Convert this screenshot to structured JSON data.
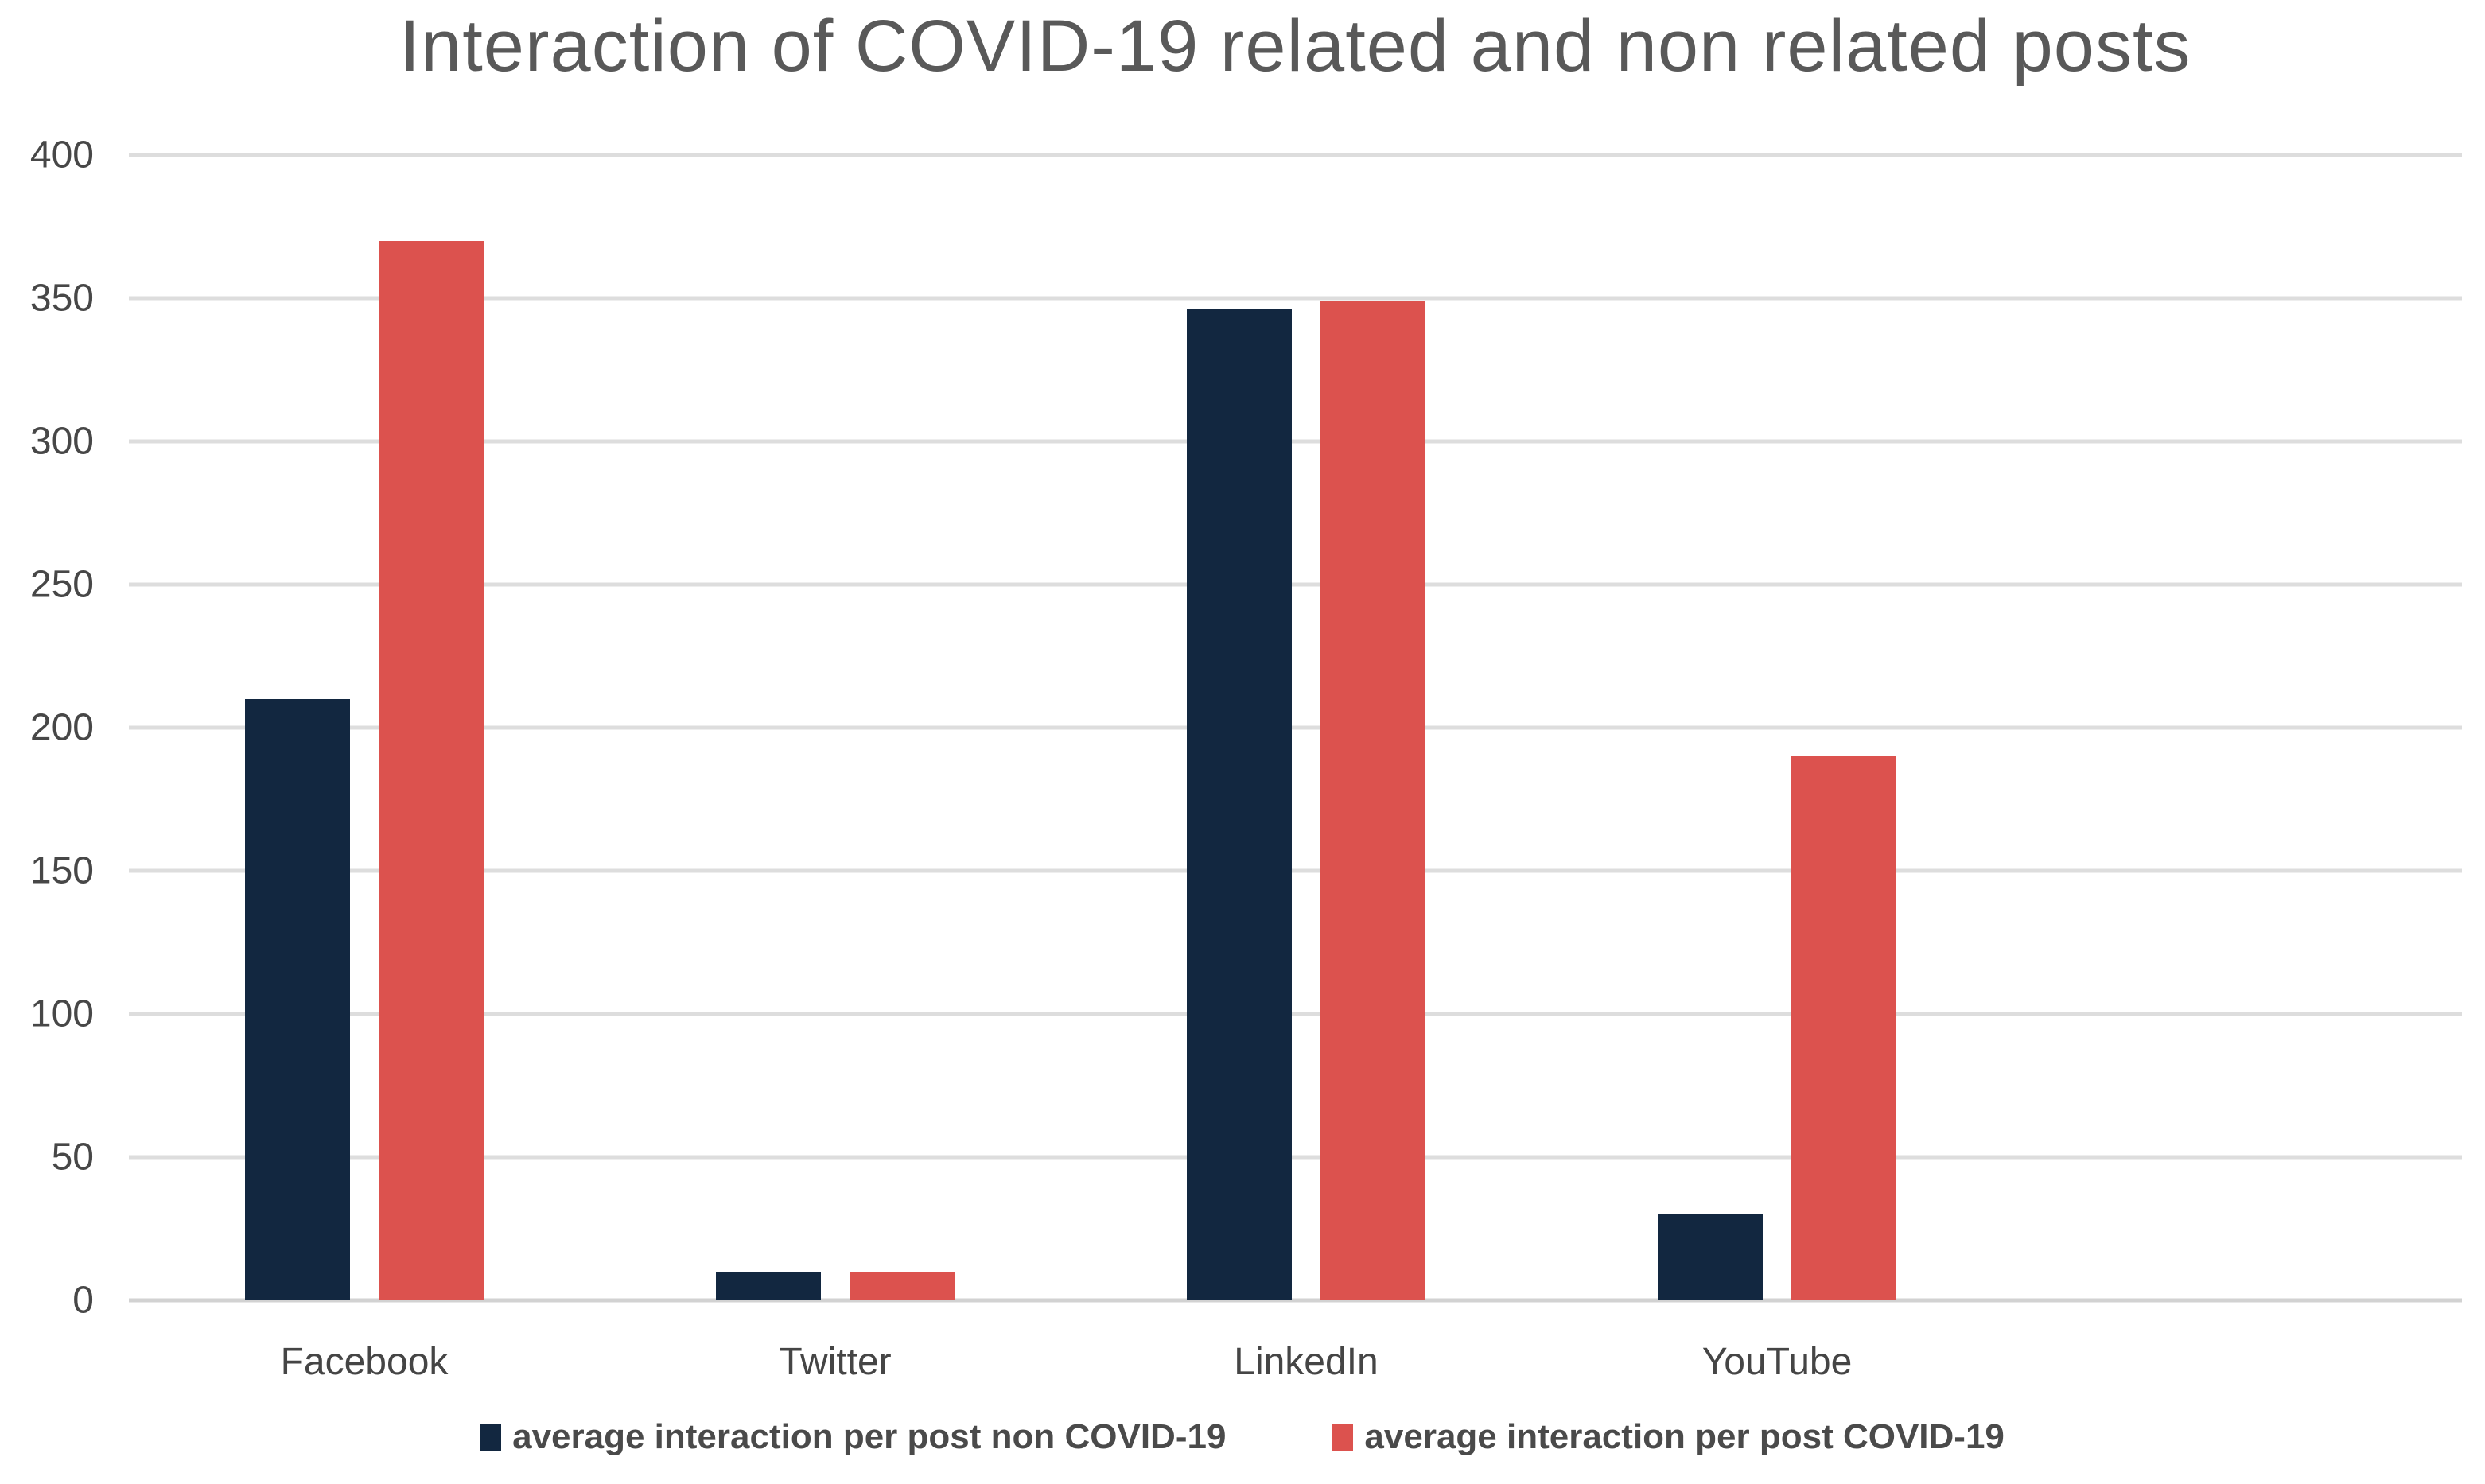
{
  "title": "Interaction of COVID-19 related and non related posts",
  "chart_data": {
    "type": "bar",
    "title": "Interaction of COVID-19 related and non related posts",
    "categories": [
      "Facebook",
      "Twitter",
      "LinkedIn",
      "YouTube"
    ],
    "series": [
      {
        "name": "average interaction per post non COVID-19",
        "color": "#122740",
        "values": [
          210,
          10,
          346,
          30
        ]
      },
      {
        "name": "average interaction per post COVID-19",
        "color": "#DC524E",
        "values": [
          370,
          10,
          349,
          190
        ]
      }
    ],
    "xlabel": "",
    "ylabel": "",
    "ylim": [
      0,
      400
    ],
    "yticks": [
      400,
      350,
      300,
      250,
      200,
      150,
      100,
      50,
      0
    ],
    "grid": "horizontal",
    "gridline_color": "#dddddd",
    "legend_position": "bottom"
  }
}
